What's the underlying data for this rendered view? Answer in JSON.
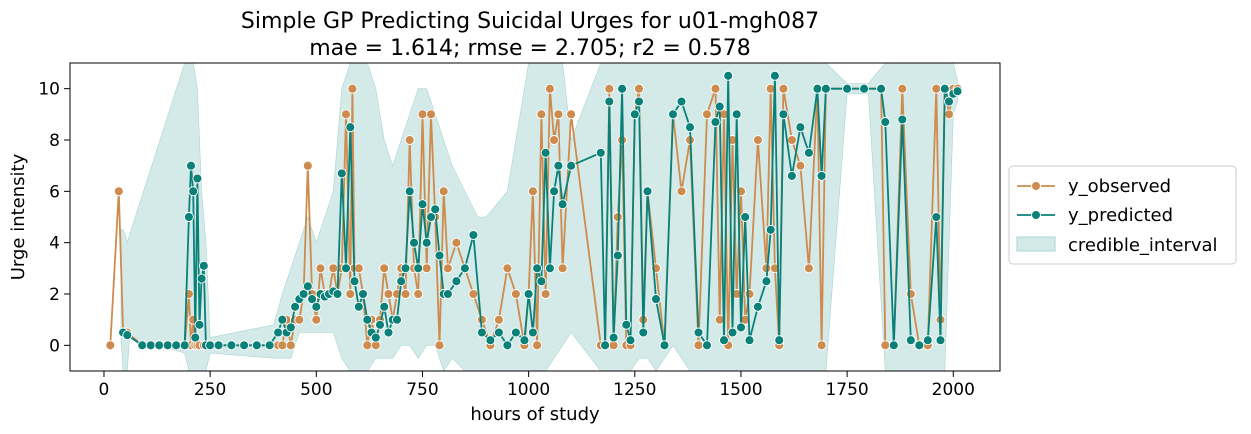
{
  "chart_data": {
    "type": "line",
    "title": "Simple GP Predicting Suicidal Urges for u01-mgh087",
    "subtitle": "mae = 1.614; rmse = 2.705; r2 = 0.578",
    "xlabel": "hours of study",
    "ylabel": "Urge intensity",
    "xlim": [
      -80,
      2110
    ],
    "ylim": [
      -1,
      11
    ],
    "xticks": [
      0,
      250,
      500,
      750,
      1000,
      1250,
      1500,
      1750,
      2000
    ],
    "yticks": [
      0,
      2,
      4,
      6,
      8,
      10
    ],
    "grid": false,
    "legend_position": "right",
    "colors": {
      "y_observed": "#cd8b4d",
      "y_predicted": "#098078",
      "credible_interval": "#a9d6d3"
    },
    "series": [
      {
        "name": "y_observed",
        "x": [
          15,
          35,
          45,
          55,
          90,
          110,
          130,
          150,
          170,
          190,
          200,
          205,
          210,
          215,
          220,
          225,
          235,
          250,
          270,
          300,
          330,
          360,
          390,
          410,
          420,
          430,
          440,
          450,
          460,
          470,
          480,
          490,
          500,
          510,
          520,
          530,
          540,
          550,
          560,
          570,
          580,
          585,
          590,
          600,
          610,
          620,
          630,
          640,
          650,
          660,
          670,
          680,
          690,
          700,
          710,
          720,
          730,
          740,
          750,
          760,
          770,
          780,
          790,
          800,
          810,
          830,
          850,
          870,
          890,
          910,
          930,
          950,
          970,
          990,
          1000,
          1010,
          1020,
          1030,
          1040,
          1050,
          1060,
          1070,
          1080,
          1100,
          1170,
          1180,
          1190,
          1200,
          1210,
          1220,
          1230,
          1240,
          1250,
          1260,
          1270,
          1280,
          1300,
          1320,
          1340,
          1360,
          1380,
          1400,
          1420,
          1440,
          1450,
          1460,
          1470,
          1480,
          1490,
          1500,
          1510,
          1520,
          1540,
          1560,
          1570,
          1580,
          1590,
          1600,
          1620,
          1640,
          1660,
          1680,
          1690,
          1700,
          1750,
          1790,
          1830,
          1840,
          1860,
          1880,
          1900,
          1920,
          1940,
          1960,
          1970,
          1980,
          1990,
          2000,
          2010
        ],
        "values": [
          0,
          6,
          0.5,
          0.5,
          0,
          0,
          0,
          0,
          0,
          0,
          2,
          0,
          1,
          0,
          0,
          0,
          0,
          0,
          0,
          0,
          0,
          0,
          0,
          0,
          0,
          1,
          0,
          1,
          1,
          2,
          7,
          2,
          1,
          3,
          2,
          2,
          3,
          2,
          3,
          9,
          2,
          10,
          3,
          3,
          2,
          0,
          1,
          0,
          1,
          3,
          2,
          1,
          2,
          3,
          2,
          8,
          3,
          2,
          9,
          3,
          9,
          5,
          0,
          6,
          3,
          4,
          3,
          2,
          1,
          0,
          1,
          3,
          2,
          0,
          2,
          6,
          0,
          9,
          2,
          10,
          8,
          9,
          3,
          9,
          0,
          0,
          10,
          0,
          5,
          8,
          0,
          0,
          9,
          10,
          1,
          6,
          3,
          0,
          9,
          6,
          8,
          0,
          9,
          10,
          1,
          9,
          0,
          8,
          2,
          6,
          1,
          2,
          8,
          3,
          10,
          3,
          0,
          10,
          8,
          7,
          3,
          10,
          0,
          10,
          10,
          10,
          10,
          0,
          0,
          10,
          2,
          0,
          0,
          10,
          1,
          10,
          9,
          10,
          10
        ]
      },
      {
        "name": "y_predicted",
        "x": [
          45,
          55,
          90,
          110,
          130,
          150,
          170,
          190,
          200,
          205,
          210,
          215,
          220,
          225,
          230,
          235,
          240,
          250,
          270,
          300,
          330,
          360,
          390,
          410,
          420,
          430,
          440,
          450,
          460,
          470,
          480,
          490,
          500,
          510,
          520,
          530,
          540,
          550,
          560,
          570,
          580,
          590,
          600,
          610,
          620,
          630,
          640,
          650,
          660,
          670,
          680,
          690,
          700,
          710,
          720,
          730,
          740,
          750,
          760,
          770,
          780,
          790,
          800,
          810,
          830,
          850,
          870,
          890,
          910,
          930,
          950,
          970,
          990,
          1000,
          1010,
          1020,
          1030,
          1040,
          1050,
          1060,
          1070,
          1080,
          1100,
          1170,
          1180,
          1190,
          1200,
          1210,
          1220,
          1230,
          1240,
          1250,
          1260,
          1270,
          1280,
          1300,
          1320,
          1340,
          1360,
          1380,
          1400,
          1420,
          1440,
          1450,
          1460,
          1470,
          1480,
          1490,
          1500,
          1510,
          1520,
          1540,
          1560,
          1570,
          1580,
          1590,
          1600,
          1620,
          1640,
          1660,
          1680,
          1690,
          1700,
          1750,
          1790,
          1830,
          1840,
          1860,
          1880,
          1900,
          1920,
          1940,
          1960,
          1970,
          1980,
          1990,
          2000,
          2010
        ],
        "values": [
          0.5,
          0.4,
          0,
          0,
          0,
          0,
          0,
          0,
          5,
          7,
          6,
          0.3,
          6.5,
          0.8,
          2.6,
          3.1,
          0,
          0,
          0,
          0,
          0,
          0,
          0,
          0.5,
          1,
          0.5,
          0.7,
          1.5,
          1.8,
          2,
          2.3,
          1.8,
          1.5,
          2,
          1.9,
          2,
          2.1,
          2,
          6.7,
          3,
          8.5,
          2.5,
          1.5,
          2,
          1,
          0.5,
          0.3,
          0.8,
          1.5,
          0.5,
          1,
          1,
          2.5,
          3,
          6,
          4,
          3,
          5.5,
          4,
          5,
          5.3,
          3.5,
          2,
          2,
          2.5,
          3,
          4.3,
          0.5,
          0.2,
          0.5,
          0,
          0.5,
          0.2,
          2,
          0.5,
          3,
          2.5,
          7.5,
          3,
          6,
          7,
          5.5,
          7,
          7.5,
          0,
          9.5,
          0.3,
          3.5,
          10,
          0.8,
          0.2,
          9,
          9.5,
          0.5,
          6,
          1.8,
          0,
          9,
          9.5,
          8.5,
          0.5,
          0,
          8.7,
          9.3,
          0.2,
          10.5,
          0.5,
          9,
          0.7,
          5,
          0.2,
          1.5,
          2.5,
          4.5,
          10.5,
          0.2,
          9,
          6.6,
          8.5,
          7.5,
          10,
          6.6,
          10,
          10,
          10,
          10,
          8.7,
          0,
          8.8,
          0.2,
          0,
          0.2,
          5,
          0.2,
          10,
          9.5,
          9.8,
          9.9
        ]
      }
    ],
    "interval": {
      "name": "credible_interval",
      "x": [
        40,
        45,
        50,
        55,
        60,
        190,
        200,
        210,
        220,
        230,
        240,
        250,
        400,
        420,
        440,
        460,
        480,
        500,
        520,
        540,
        560,
        580,
        600,
        620,
        640,
        660,
        680,
        700,
        720,
        740,
        760,
        780,
        800,
        820,
        850,
        880,
        900,
        950,
        1000,
        1020,
        1040,
        1060,
        1080,
        1100,
        1170,
        1200,
        1220,
        1240,
        1260,
        1280,
        1300,
        1340,
        1380,
        1400,
        1420,
        1440,
        1460,
        1480,
        1500,
        1520,
        1540,
        1560,
        1580,
        1600,
        1620,
        1640,
        1660,
        1680,
        1700,
        1750,
        1800,
        1840,
        1860,
        1900,
        1940,
        1960,
        1980,
        2000,
        2010
      ],
      "lower": [
        0.3,
        -1,
        -1,
        -1,
        0.3,
        -0.3,
        -1,
        -1,
        -1,
        -1,
        -1,
        -0.3,
        -0.5,
        -0.5,
        -0.5,
        0.5,
        0.5,
        0.5,
        0.5,
        0.5,
        -0.5,
        -1,
        -1,
        -1,
        -0.5,
        -0.5,
        -0.5,
        0,
        0,
        -0.5,
        0,
        0,
        -1,
        -0.5,
        -1,
        -1,
        -1,
        -1,
        -1,
        -1,
        -1,
        -0.5,
        0,
        0.5,
        -1,
        -1,
        -1,
        -1,
        -0.5,
        -0.5,
        -1,
        0,
        -1,
        -1,
        -1,
        -1,
        -1,
        -1,
        -1,
        -1,
        -1,
        -1,
        -1,
        -1,
        -1,
        -1,
        -1,
        -1,
        -1,
        9.8,
        9.8,
        -1,
        -1,
        -1,
        -1,
        -1,
        -1,
        9,
        9.5
      ],
      "upper": [
        4.5,
        4.5,
        4.3,
        4,
        4.3,
        11,
        11,
        11,
        10,
        6,
        4,
        0.3,
        0.8,
        2,
        3,
        4,
        5,
        4,
        5,
        6,
        10,
        11,
        11,
        11,
        10,
        8,
        7,
        8,
        9,
        10,
        10,
        9,
        8,
        7,
        6,
        5,
        5,
        6,
        11,
        11,
        11,
        11,
        11,
        8,
        11,
        11,
        11,
        11,
        11,
        11,
        11,
        11,
        11,
        11,
        11,
        11,
        11,
        11,
        11,
        11,
        11,
        11,
        11,
        11,
        11,
        11,
        11,
        11,
        11,
        10.2,
        10.2,
        11,
        11,
        11,
        11,
        11,
        11,
        11,
        10.3
      ]
    }
  }
}
